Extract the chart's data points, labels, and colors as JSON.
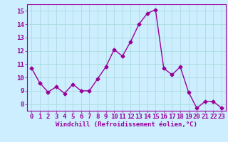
{
  "x": [
    0,
    1,
    2,
    3,
    4,
    5,
    6,
    7,
    8,
    9,
    10,
    11,
    12,
    13,
    14,
    15,
    16,
    17,
    18,
    19,
    20,
    21,
    22,
    23
  ],
  "y": [
    10.7,
    9.6,
    8.9,
    9.3,
    8.8,
    9.5,
    9.0,
    9.0,
    9.9,
    10.8,
    12.1,
    11.6,
    12.7,
    14.0,
    14.8,
    15.1,
    10.7,
    10.2,
    10.8,
    8.9,
    7.7,
    8.2,
    8.2,
    7.7
  ],
  "line_color": "#990099",
  "marker": "D",
  "markersize": 2.5,
  "linewidth": 1.0,
  "background_color": "#cceeff",
  "grid_color": "#aadddd",
  "xlabel": "Windchill (Refroidissement éolien,°C)",
  "xlabel_fontsize": 6.5,
  "xlabel_color": "#990099",
  "ylim": [
    7.5,
    15.5
  ],
  "xlim": [
    -0.5,
    23.5
  ],
  "yticks": [
    8,
    9,
    10,
    11,
    12,
    13,
    14,
    15
  ],
  "xticks": [
    0,
    1,
    2,
    3,
    4,
    5,
    6,
    7,
    8,
    9,
    10,
    11,
    12,
    13,
    14,
    15,
    16,
    17,
    18,
    19,
    20,
    21,
    22,
    23
  ],
  "tick_fontsize": 6.5,
  "tick_color": "#990099"
}
